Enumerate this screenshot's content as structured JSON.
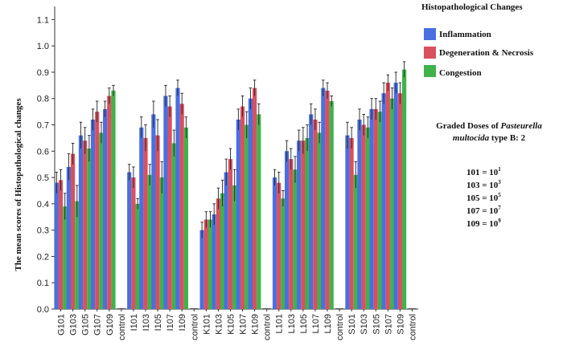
{
  "chart_data": {
    "type": "bar",
    "ylabel": "The mean scores of Histopathological changes",
    "ylim": [
      0,
      1.15
    ],
    "yticks": [
      "0.0",
      "0.1",
      "0.2",
      "0.3",
      "0.4",
      "0.5",
      "0.6",
      "0.7",
      "0.8",
      "0.9",
      "1.0",
      "1.1"
    ],
    "grid": false,
    "legend_title": "Histopathological Changes",
    "legend_position": "right",
    "categories": [
      "G101",
      "G103",
      "G105",
      "G107",
      "G109",
      "control",
      "I101",
      "I103",
      "I105",
      "I107",
      "I109",
      "control",
      "K101",
      "K103",
      "K105",
      "K107",
      "K109",
      "control",
      "L101",
      "L103",
      "L105",
      "L107",
      "L109",
      "control",
      "S101",
      "S103",
      "S105",
      "S107",
      "S109",
      "control"
    ],
    "series": [
      {
        "name": "Inflammation",
        "color": "#4a6fe0",
        "values": [
          0.48,
          0.54,
          0.66,
          0.72,
          0.76,
          0.0,
          0.52,
          0.69,
          0.74,
          0.81,
          0.84,
          0.0,
          0.3,
          0.36,
          0.52,
          0.72,
          0.8,
          0.0,
          0.5,
          0.6,
          0.64,
          0.74,
          0.84,
          0.0,
          0.66,
          0.72,
          0.76,
          0.82,
          0.86,
          0.0
        ],
        "errors": [
          0.04,
          0.05,
          0.05,
          0.04,
          0.03,
          0.0,
          0.03,
          0.04,
          0.05,
          0.04,
          0.03,
          0.0,
          0.03,
          0.04,
          0.05,
          0.04,
          0.04,
          0.0,
          0.03,
          0.04,
          0.04,
          0.04,
          0.03,
          0.0,
          0.05,
          0.04,
          0.04,
          0.04,
          0.04,
          0.0
        ]
      },
      {
        "name": "Degeneration & Necrosis",
        "color": "#d9505f",
        "values": [
          0.49,
          0.59,
          0.64,
          0.75,
          0.81,
          0.0,
          0.5,
          0.65,
          0.66,
          0.77,
          0.78,
          0.0,
          0.34,
          0.42,
          0.57,
          0.77,
          0.84,
          0.0,
          0.48,
          0.57,
          0.64,
          0.72,
          0.83,
          0.0,
          0.65,
          0.7,
          0.76,
          0.86,
          0.82,
          0.0
        ],
        "errors": [
          0.04,
          0.04,
          0.05,
          0.04,
          0.03,
          0.0,
          0.04,
          0.05,
          0.06,
          0.04,
          0.04,
          0.0,
          0.03,
          0.04,
          0.04,
          0.04,
          0.03,
          0.0,
          0.04,
          0.04,
          0.05,
          0.04,
          0.03,
          0.0,
          0.04,
          0.04,
          0.04,
          0.03,
          0.04,
          0.0
        ]
      },
      {
        "name": "Congestion",
        "color": "#3fb34a",
        "values": [
          0.39,
          0.41,
          0.61,
          0.67,
          0.83,
          0.0,
          0.4,
          0.51,
          0.5,
          0.63,
          0.69,
          0.0,
          0.34,
          0.44,
          0.47,
          0.7,
          0.74,
          0.0,
          0.42,
          0.53,
          0.65,
          0.67,
          0.79,
          0.0,
          0.51,
          0.69,
          0.75,
          0.8,
          0.91,
          0.0
        ],
        "errors": [
          0.05,
          0.06,
          0.05,
          0.04,
          0.02,
          0.0,
          0.02,
          0.04,
          0.06,
          0.05,
          0.04,
          0.0,
          0.03,
          0.05,
          0.06,
          0.05,
          0.04,
          0.0,
          0.03,
          0.05,
          0.05,
          0.04,
          0.02,
          0.0,
          0.05,
          0.04,
          0.04,
          0.04,
          0.03,
          0.0
        ]
      }
    ]
  },
  "annotation": {
    "heading_prefix": "Graded Doses of ",
    "heading_italic_1": "Pasteurella",
    "heading_italic_2": "multocida",
    "heading_suffix": " type B: 2",
    "doses": [
      {
        "dose": "101 = 10",
        "exp": "1"
      },
      {
        "dose": "103 = 10",
        "exp": "3"
      },
      {
        "dose": "105 = 10",
        "exp": "5"
      },
      {
        "dose": "107 = 10",
        "exp": "7"
      },
      {
        "dose": "109 = 10",
        "exp": "9"
      }
    ]
  }
}
